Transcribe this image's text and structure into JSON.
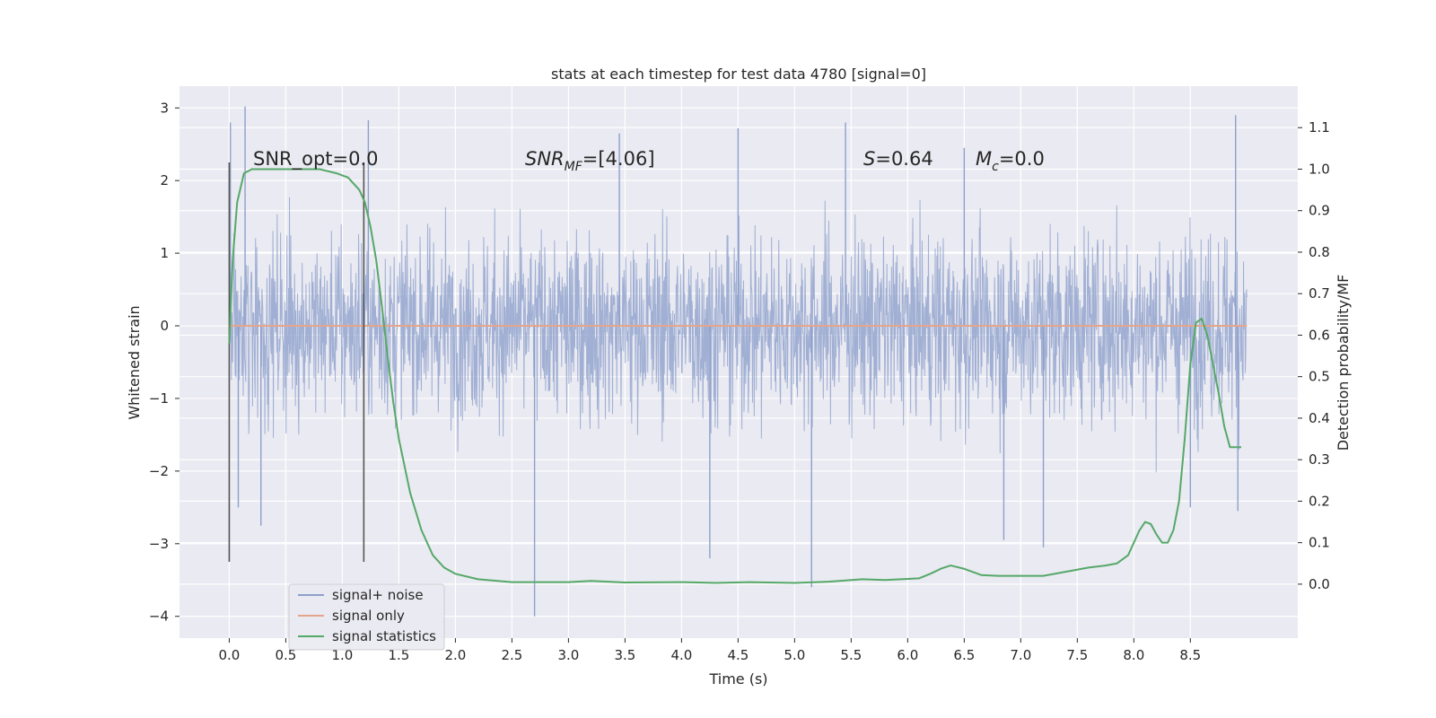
{
  "chart_data": {
    "type": "line",
    "title": "stats at each timestep for test data 4780 [signal=0]",
    "xlabel": "Time (s)",
    "ylabel_left": "Whitened strain",
    "ylabel_right": "Detection probability/MF",
    "xlim": [
      -0.44,
      9.45
    ],
    "ylim_left": [
      -4.3,
      3.3
    ],
    "ylim_right": [
      -0.13,
      1.2
    ],
    "grid": true,
    "legend_position": "lower-left",
    "xticks": [
      0.0,
      0.5,
      1.0,
      1.5,
      2.0,
      2.5,
      3.0,
      3.5,
      4.0,
      4.5,
      5.0,
      5.5,
      6.0,
      6.5,
      7.0,
      7.5,
      8.0,
      8.5
    ],
    "xtick_labels": [
      "0.0",
      "0.5",
      "1.0",
      "1.5",
      "2.0",
      "2.5",
      "3.0",
      "3.5",
      "4.0",
      "4.5",
      "5.0",
      "5.5",
      "6.0",
      "6.5",
      "7.0",
      "7.5",
      "8.0",
      "8.5"
    ],
    "yticks_left": [
      -4,
      -3,
      -2,
      -1,
      0,
      1,
      2,
      3
    ],
    "ytick_labels_left": [
      "−4",
      "−3",
      "−2",
      "−1",
      "0",
      "1",
      "2",
      "3"
    ],
    "yticks_right": [
      0.0,
      0.1,
      0.2,
      0.3,
      0.4,
      0.5,
      0.6,
      0.7,
      0.8,
      0.9,
      1.0,
      1.1
    ],
    "ytick_labels_right": [
      "0.0",
      "0.1",
      "0.2",
      "0.3",
      "0.4",
      "0.5",
      "0.6",
      "0.7",
      "0.8",
      "0.9",
      "1.0",
      "1.1"
    ],
    "series": [
      {
        "name": "signal+ noise",
        "color": "#8da0cb",
        "axis": "left",
        "description": "dense noisy strain over 0 to 9 s, roughly within -2.5 to 2.5 with peaks to 3.0 and -4.0",
        "x_range": [
          0.0,
          9.0
        ],
        "envelope_typical": [
          -1.2,
          1.2
        ],
        "spikes": [
          [
            0.01,
            2.8
          ],
          [
            0.14,
            3.02
          ],
          [
            0.08,
            -2.5
          ],
          [
            0.28,
            -2.75
          ],
          [
            1.23,
            2.83
          ],
          [
            2.7,
            -4.0
          ],
          [
            3.45,
            2.65
          ],
          [
            4.25,
            -3.2
          ],
          [
            4.5,
            2.72
          ],
          [
            5.15,
            -3.6
          ],
          [
            5.45,
            2.8
          ],
          [
            6.5,
            2.45
          ],
          [
            6.85,
            -2.95
          ],
          [
            7.2,
            -3.05
          ],
          [
            8.5,
            -2.5
          ],
          [
            8.9,
            2.9
          ],
          [
            8.92,
            -2.55
          ]
        ]
      },
      {
        "name": "signal only",
        "color": "#e5a58c",
        "axis": "left",
        "x": [
          0.0,
          9.0
        ],
        "y": [
          0.0,
          0.0
        ]
      },
      {
        "name": "signal statistics",
        "color": "#55a868",
        "axis": "right",
        "x": [
          0.0,
          0.03,
          0.07,
          0.13,
          0.2,
          0.3,
          0.45,
          0.6,
          0.8,
          0.95,
          1.05,
          1.15,
          1.2,
          1.25,
          1.3,
          1.35,
          1.4,
          1.45,
          1.5,
          1.6,
          1.7,
          1.8,
          1.9,
          2.0,
          2.2,
          2.5,
          3.0,
          3.2,
          3.5,
          4.0,
          4.3,
          4.6,
          5.0,
          5.3,
          5.6,
          5.8,
          6.1,
          6.2,
          6.3,
          6.38,
          6.5,
          6.65,
          6.8,
          7.0,
          7.2,
          7.4,
          7.6,
          7.75,
          7.85,
          7.95,
          8.0,
          8.05,
          8.1,
          8.15,
          8.2,
          8.25,
          8.3,
          8.35,
          8.4,
          8.45,
          8.5,
          8.55,
          8.6,
          8.65,
          8.7,
          8.75,
          8.8,
          8.85,
          8.9,
          8.95
        ],
        "y": [
          0.58,
          0.78,
          0.92,
          0.99,
          1.0,
          1.0,
          1.0,
          1.0,
          1.0,
          0.99,
          0.98,
          0.95,
          0.92,
          0.86,
          0.78,
          0.67,
          0.55,
          0.44,
          0.35,
          0.22,
          0.13,
          0.07,
          0.04,
          0.025,
          0.012,
          0.005,
          0.005,
          0.008,
          0.004,
          0.005,
          0.003,
          0.005,
          0.003,
          0.006,
          0.012,
          0.01,
          0.014,
          0.025,
          0.038,
          0.045,
          0.037,
          0.022,
          0.02,
          0.02,
          0.02,
          0.03,
          0.04,
          0.045,
          0.05,
          0.07,
          0.1,
          0.13,
          0.15,
          0.145,
          0.12,
          0.1,
          0.1,
          0.13,
          0.2,
          0.35,
          0.53,
          0.63,
          0.64,
          0.6,
          0.53,
          0.46,
          0.38,
          0.33,
          0.33,
          0.33
        ]
      }
    ],
    "vertical_lines": {
      "color": "#555555",
      "x": [
        0.0,
        1.19
      ],
      "y_range": [
        -3.25,
        2.25
      ]
    },
    "annotations": [
      {
        "id": "snr-opt",
        "text": "SNR_opt=0.0",
        "x": 0.2,
        "y": 2.35
      },
      {
        "id": "snr-mf",
        "text": "=[4.06]",
        "x": 2.62,
        "y": 2.35,
        "math_base": "SNR",
        "math_sub": "MF"
      },
      {
        "id": "s-stat",
        "text": "=0.64",
        "x": 5.62,
        "y": 2.35,
        "math_base": "S"
      },
      {
        "id": "mc",
        "text": "=0.0",
        "x": 6.62,
        "y": 2.35,
        "math_base": "M",
        "math_sub": "c"
      }
    ]
  }
}
